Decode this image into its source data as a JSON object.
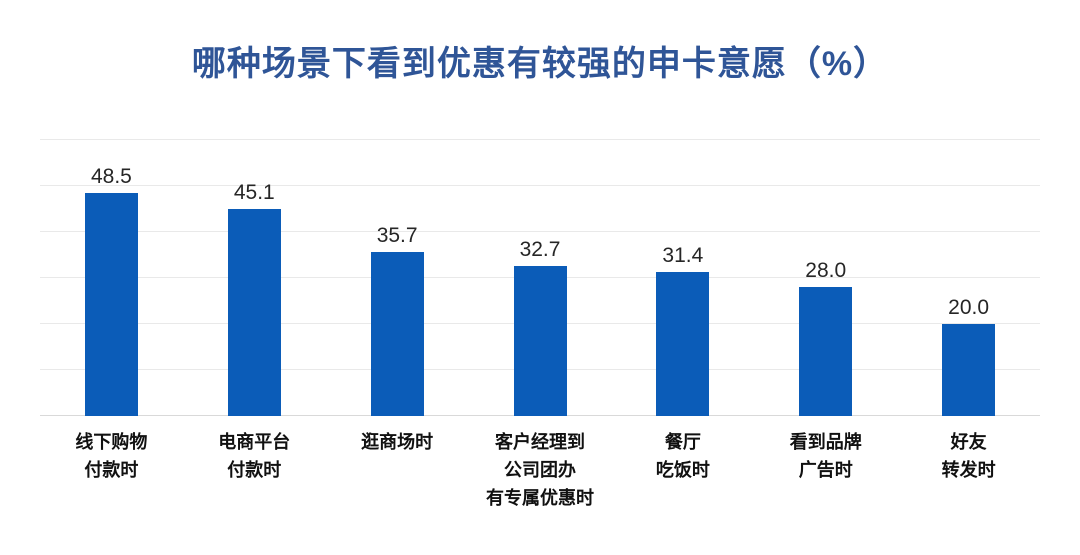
{
  "chart_data": {
    "type": "bar",
    "title": "哪种场景下看到优惠有较强的申卡意愿（%）",
    "categories": [
      [
        "线下购物",
        "付款时"
      ],
      [
        "电商平台",
        "付款时"
      ],
      [
        "逛商场时"
      ],
      [
        "客户经理到",
        "公司团办",
        "有专属优惠时"
      ],
      [
        "餐厅",
        "吃饭时"
      ],
      [
        "看到品牌",
        "广告时"
      ],
      [
        "好友",
        "转发时"
      ]
    ],
    "values": [
      48.5,
      45.1,
      35.7,
      32.7,
      31.4,
      28.0,
      20.0
    ],
    "value_labels": [
      "48.5",
      "45.1",
      "35.7",
      "32.7",
      "31.4",
      "28.0",
      "20.0"
    ],
    "xlabel": "",
    "ylabel": "",
    "ylim": [
      0,
      60
    ],
    "grid_step": 10,
    "grid": "horizontal",
    "legend_position": "none",
    "colors": {
      "bar": "#0B5CB8",
      "title": "#2F5597",
      "gridline": "#e9e9e9",
      "axis_line": "#d9d9d9",
      "value_label": "#262626",
      "category_label": "#111111"
    }
  }
}
